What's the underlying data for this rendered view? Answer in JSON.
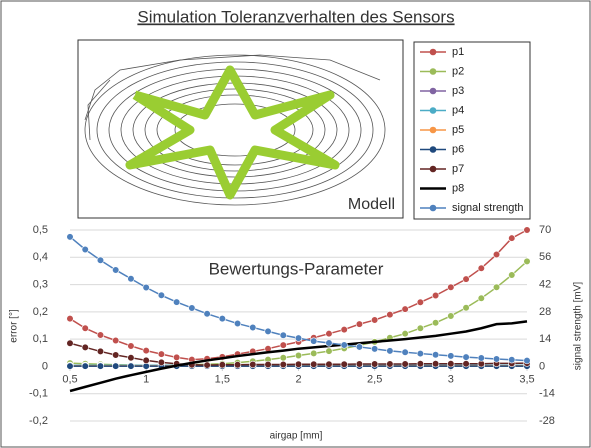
{
  "chart_data": {
    "type": "line",
    "title": "Simulation Toleranzverhalten des Sensors",
    "model_label": "Modell",
    "annotation": "Bewertungs-Parameter",
    "x_label": "airgap [mm]",
    "y_label": "error [°]",
    "y2_label": "signal strength [mV]",
    "x": [
      0.5,
      0.6,
      0.7,
      0.8,
      0.9,
      1.0,
      1.1,
      1.2,
      1.3,
      1.4,
      1.5,
      1.6,
      1.7,
      1.8,
      1.9,
      2.0,
      2.1,
      2.2,
      2.3,
      2.4,
      2.5,
      2.6,
      2.7,
      2.8,
      2.9,
      3.0,
      3.1,
      3.2,
      3.3,
      3.4,
      3.5
    ],
    "xlim": [
      0.5,
      3.5
    ],
    "xticks": [
      {
        "value": 0.5,
        "label": "0,5"
      },
      1,
      {
        "value": 1.5,
        "label": "1,5"
      },
      2,
      {
        "value": 2.5,
        "label": "2,5"
      },
      3,
      {
        "value": 3.5,
        "label": "3,5"
      }
    ],
    "ylim": [
      -0.2,
      0.5
    ],
    "yticks": [
      {
        "value": -0.2,
        "label": "-0,2"
      },
      {
        "value": -0.1,
        "label": "-0,1"
      },
      0,
      {
        "value": 0.1,
        "label": "0,1"
      },
      {
        "value": 0.2,
        "label": "0,2"
      },
      {
        "value": 0.3,
        "label": "0,3"
      },
      {
        "value": 0.4,
        "label": "0,4"
      },
      {
        "value": 0.5,
        "label": "0,5"
      }
    ],
    "y2lim": [
      -28,
      70
    ],
    "y2ticks": [
      -28,
      -14,
      0,
      14,
      28,
      42,
      56,
      70
    ],
    "grid": true,
    "series": [
      {
        "name": "p1",
        "color": "#c0504d",
        "marker": true,
        "values": [
          0.175,
          0.14,
          0.115,
          0.095,
          0.075,
          0.058,
          0.045,
          0.033,
          0.025,
          0.028,
          0.035,
          0.045,
          0.055,
          0.065,
          0.078,
          0.09,
          0.105,
          0.12,
          0.135,
          0.155,
          0.17,
          0.19,
          0.21,
          0.235,
          0.26,
          0.29,
          0.32,
          0.36,
          0.41,
          0.47,
          0.5
        ]
      },
      {
        "name": "p2",
        "color": "#9bbb59",
        "marker": true,
        "values": [
          0.012,
          0.01,
          0.008,
          0.006,
          0.005,
          0.004,
          0.004,
          0.005,
          0.006,
          0.008,
          0.01,
          0.014,
          0.019,
          0.025,
          0.032,
          0.04,
          0.048,
          0.056,
          0.066,
          0.077,
          0.09,
          0.105,
          0.12,
          0.14,
          0.16,
          0.185,
          0.215,
          0.25,
          0.29,
          0.335,
          0.385
        ]
      },
      {
        "name": "p3",
        "color": "#8064a2",
        "marker": true,
        "values": [
          0.003,
          0.003,
          0.003,
          0.003,
          0.003,
          0.003,
          0.003,
          0.003,
          0.003,
          0.003,
          0.003,
          0.003,
          0.003,
          0.003,
          0.003,
          0.003,
          0.003,
          0.003,
          0.003,
          0.003,
          0.003,
          0.003,
          0.003,
          0.003,
          0.003,
          0.003,
          0.003,
          0.003,
          0.003,
          0.003,
          0.003
        ]
      },
      {
        "name": "p4",
        "color": "#4bacc6",
        "marker": true,
        "values": [
          0.004,
          0.004,
          0.004,
          0.004,
          0.004,
          0.004,
          0.004,
          0.004,
          0.004,
          0.004,
          0.004,
          0.004,
          0.004,
          0.004,
          0.004,
          0.004,
          0.004,
          0.004,
          0.004,
          0.004,
          0.004,
          0.004,
          0.004,
          0.004,
          0.004,
          0.004,
          0.004,
          0.004,
          0.004,
          0.004,
          0.004
        ]
      },
      {
        "name": "p5",
        "color": "#f79646",
        "marker": true,
        "values": [
          0.002,
          0.002,
          0.002,
          0.002,
          0.002,
          0.002,
          0.002,
          0.002,
          0.002,
          0.002,
          0.002,
          0.002,
          0.002,
          0.002,
          0.002,
          0.002,
          0.002,
          0.002,
          0.002,
          0.002,
          0.002,
          0.002,
          0.002,
          0.002,
          0.002,
          0.002,
          0.002,
          0.002,
          0.002,
          0.002,
          0.002
        ]
      },
      {
        "name": "p6",
        "color": "#1f497d",
        "marker": true,
        "values": [
          0.001,
          0.001,
          0.001,
          0.001,
          0.001,
          0.001,
          0.001,
          0.001,
          0.001,
          0.001,
          0.001,
          0.001,
          0.001,
          0.001,
          0.001,
          0.001,
          0.001,
          0.001,
          0.001,
          0.001,
          0.001,
          0.001,
          0.001,
          0.001,
          0.001,
          0.001,
          0.001,
          0.001,
          0.001,
          0.001,
          0.001
        ]
      },
      {
        "name": "p7",
        "color": "#632523",
        "marker": true,
        "values": [
          0.085,
          0.07,
          0.055,
          0.042,
          0.032,
          0.022,
          0.015,
          0.01,
          0.006,
          0.005,
          0.006,
          0.006,
          0.007,
          0.007,
          0.007,
          0.008,
          0.008,
          0.008,
          0.008,
          0.009,
          0.009,
          0.009,
          0.009,
          0.01,
          0.01,
          0.01,
          0.01,
          0.01,
          0.011,
          0.011,
          0.012
        ]
      },
      {
        "name": "p8",
        "color": "#000000",
        "marker": false,
        "values": [
          -0.09,
          -0.075,
          -0.06,
          -0.045,
          -0.032,
          -0.02,
          -0.008,
          0.003,
          0.013,
          0.022,
          0.03,
          0.038,
          0.045,
          0.052,
          0.058,
          0.065,
          0.07,
          0.075,
          0.08,
          0.085,
          0.09,
          0.095,
          0.1,
          0.106,
          0.112,
          0.12,
          0.128,
          0.14,
          0.155,
          0.158,
          0.165
        ]
      },
      {
        "name": "signal strength",
        "color": "#4f81bd",
        "marker": true,
        "axis": "y2",
        "values": [
          66.5,
          60,
          54.5,
          49.5,
          45,
          40.5,
          36.5,
          33,
          30,
          27,
          24.5,
          22,
          20,
          18,
          16,
          14.5,
          13,
          12,
          11,
          10,
          9,
          8,
          7.3,
          6.6,
          6,
          5.4,
          4.8,
          4.3,
          3.8,
          3.4,
          3
        ]
      }
    ]
  }
}
